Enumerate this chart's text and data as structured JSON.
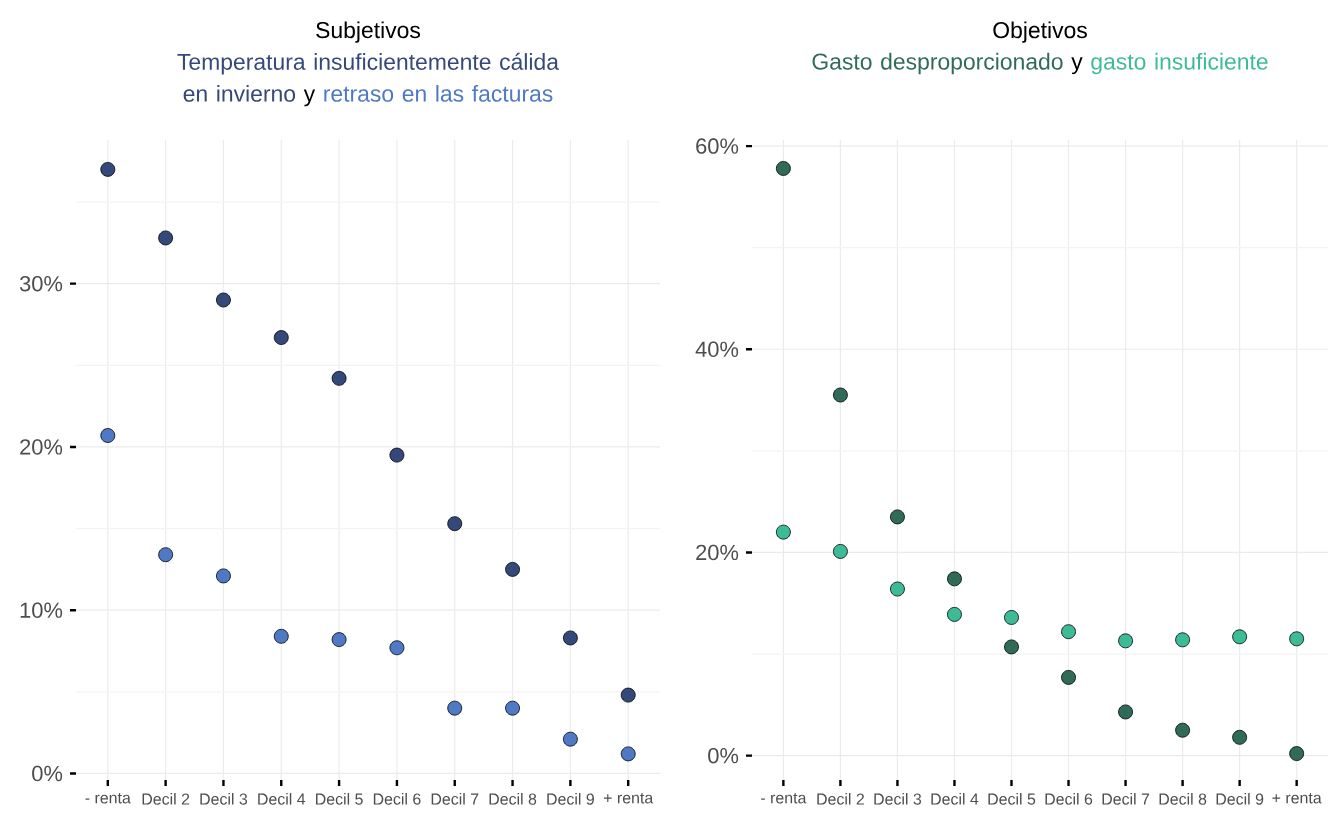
{
  "chart_data": [
    {
      "type": "scatter",
      "title": "Subjetivos",
      "annotations": [
        "y"
      ],
      "categories": [
        "- renta",
        "Decil 2",
        "Decil 3",
        "Decil 4",
        "Decil 5",
        "Decil 6",
        "Decil 7",
        "Decil 8",
        "Decil 9",
        "+ renta"
      ],
      "series": [
        {
          "name": "Temperatura insuficientemente cálida en invierno",
          "color": "#34497a",
          "values": [
            37.0,
            32.8,
            29.0,
            26.7,
            24.2,
            19.5,
            15.3,
            12.5,
            8.3,
            4.8
          ]
        },
        {
          "name": "retraso en las facturas",
          "color": "#4f79c4",
          "values": [
            20.7,
            13.4,
            12.1,
            8.4,
            8.2,
            7.7,
            4.0,
            4.0,
            2.1,
            1.2
          ]
        }
      ],
      "ylim": [
        -0.4,
        38.8
      ],
      "yticks": [
        {
          "value": 0,
          "label": "0%"
        },
        {
          "value": 5,
          "label": null
        },
        {
          "value": 10,
          "label": "10%"
        },
        {
          "value": 15,
          "label": null
        },
        {
          "value": 20,
          "label": "20%"
        },
        {
          "value": 25,
          "label": null
        },
        {
          "value": 30,
          "label": "30%"
        },
        {
          "value": 35,
          "label": null
        }
      ],
      "grid": true,
      "marker": "circle"
    },
    {
      "type": "scatter",
      "title": "Objetivos",
      "annotations": [
        "y"
      ],
      "categories": [
        "- renta",
        "Decil 2",
        "Decil 3",
        "Decil 4",
        "Decil 5",
        "Decil 6",
        "Decil 7",
        "Decil 8",
        "Decil 9",
        "+ renta"
      ],
      "series": [
        {
          "name": "Gasto desproporcionado",
          "color": "#2f6b58",
          "values": [
            57.8,
            35.5,
            23.5,
            17.4,
            10.7,
            7.7,
            4.3,
            2.5,
            1.8,
            0.2
          ]
        },
        {
          "name": "gasto insuficiente",
          "color": "#3dbb96",
          "values": [
            22.0,
            20.1,
            16.4,
            13.9,
            13.6,
            12.2,
            11.3,
            11.4,
            11.7,
            11.5
          ]
        }
      ],
      "ylim": [
        -2.4,
        60.6
      ],
      "yticks": [
        {
          "value": 0,
          "label": "0%"
        },
        {
          "value": 10,
          "label": null
        },
        {
          "value": 20,
          "label": "20%"
        },
        {
          "value": 30,
          "label": null
        },
        {
          "value": 40,
          "label": "40%"
        },
        {
          "value": 50,
          "label": null
        },
        {
          "value": 60,
          "label": "60%"
        }
      ],
      "grid": true,
      "marker": "circle"
    }
  ]
}
